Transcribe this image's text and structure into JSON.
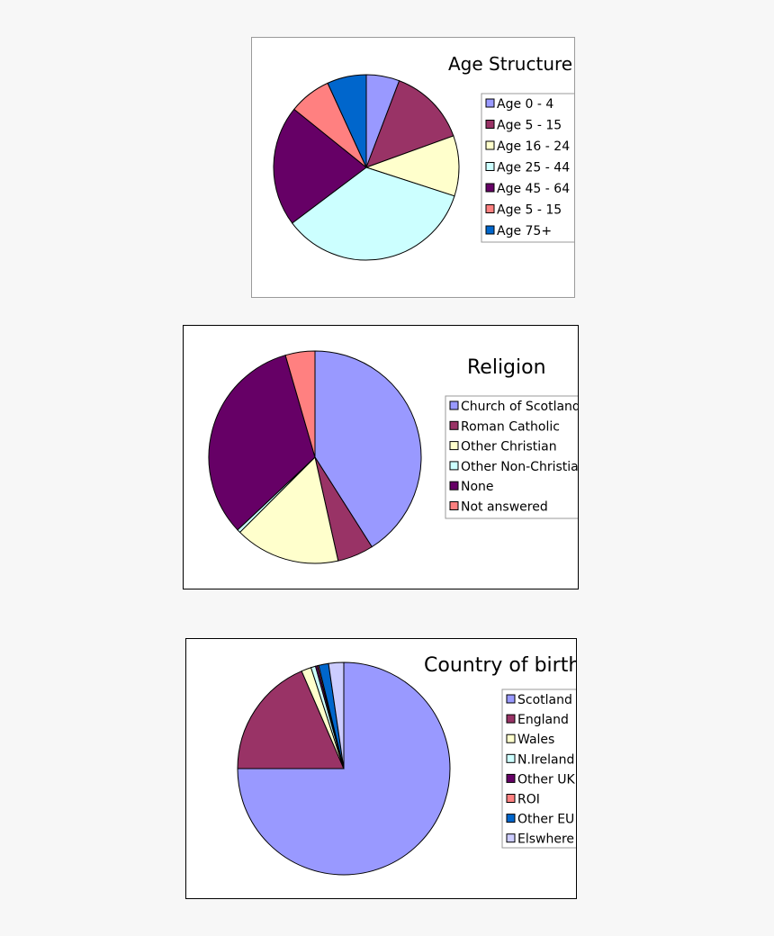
{
  "charts": [
    {
      "id": "age",
      "title": "Age Structure",
      "chart_data": {
        "type": "pie",
        "title": "Age Structure",
        "slices": [
          {
            "label": "Age 0 - 4",
            "value": 5.5,
            "color": "#9999ff"
          },
          {
            "label": "Age 5 - 15",
            "value": 13,
            "color": "#993366"
          },
          {
            "label": "Age 16 - 24",
            "value": 10,
            "color": "#ffffcc"
          },
          {
            "label": "Age 25 - 44",
            "value": 33,
            "color": "#ccffff"
          },
          {
            "label": "Age 45 - 64",
            "value": 20,
            "color": "#660066"
          },
          {
            "label": "Age 5 - 15",
            "value": 7,
            "color": "#ff8080"
          },
          {
            "label": "Age 75+",
            "value": 6.5,
            "color": "#0066cc"
          }
        ],
        "legend_position": "right"
      }
    },
    {
      "id": "religion",
      "title": "Religion",
      "chart_data": {
        "type": "pie",
        "title": "Religion",
        "slices": [
          {
            "label": "Church of Scotland",
            "value": 41,
            "color": "#9999ff"
          },
          {
            "label": "Roman Catholic",
            "value": 5.5,
            "color": "#993366"
          },
          {
            "label": "Other Christian",
            "value": 16,
            "color": "#ffffcc"
          },
          {
            "label": "Other Non-Christian",
            "value": 0.5,
            "color": "#ccffff"
          },
          {
            "label": "None",
            "value": 32.5,
            "color": "#660066"
          },
          {
            "label": "Not answered",
            "value": 4.5,
            "color": "#ff8080"
          }
        ],
        "legend_position": "right"
      }
    },
    {
      "id": "birth",
      "title": "Country of birth",
      "chart_data": {
        "type": "pie",
        "title": "Country of birth",
        "slices": [
          {
            "label": "Scotland",
            "value": 75,
            "color": "#9999ff"
          },
          {
            "label": "England",
            "value": 18.5,
            "color": "#993366"
          },
          {
            "label": "Wales",
            "value": 1.5,
            "color": "#ffffcc"
          },
          {
            "label": "N.Ireland",
            "value": 0.7,
            "color": "#ccffff"
          },
          {
            "label": "Other UK",
            "value": 0.3,
            "color": "#660066"
          },
          {
            "label": "ROI",
            "value": 0.2,
            "color": "#ff8080"
          },
          {
            "label": "Other EU",
            "value": 1.5,
            "color": "#0066cc"
          },
          {
            "label": "Elswhere",
            "value": 2.3,
            "color": "#ccccff"
          }
        ],
        "legend_position": "right"
      }
    }
  ]
}
